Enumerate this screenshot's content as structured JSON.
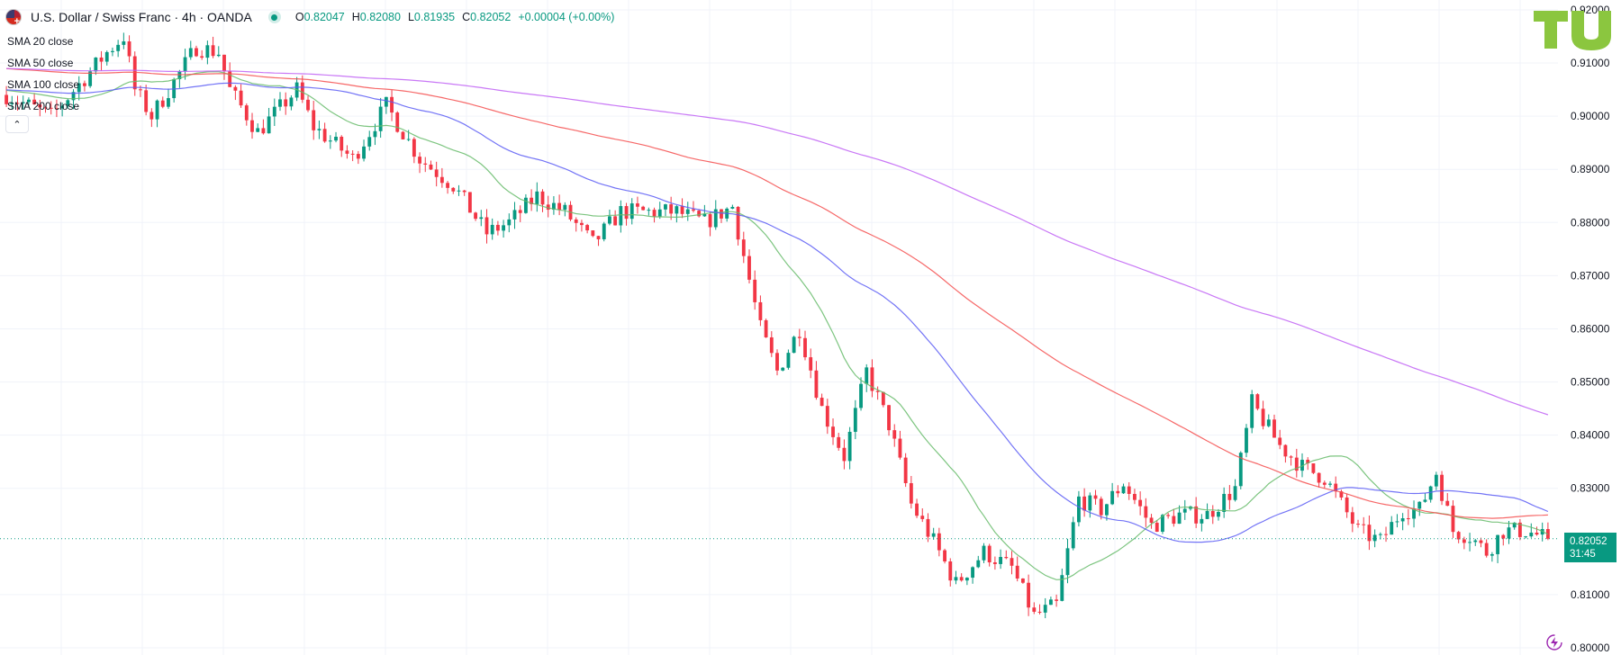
{
  "header": {
    "title": "U.S. Dollar / Swiss Franc · 4h · OANDA",
    "ohlc": {
      "o_label": "O",
      "o_value": "0.82047",
      "h_label": "H",
      "h_value": "0.82080",
      "l_label": "L",
      "l_value": "0.81935",
      "c_label": "C",
      "c_value": "0.82052",
      "change": "+0.00004 (+0.00%)"
    }
  },
  "legend": [
    {
      "label": "SMA 20 close"
    },
    {
      "label": "SMA 50 close"
    },
    {
      "label": "SMA 100 close"
    },
    {
      "label": "SMA 200 close"
    }
  ],
  "icons": {
    "collapse": "chevron-up-icon",
    "logo": "tu-logo",
    "bolt": "lightning-icon",
    "flag": "us-swiss-flag-icon"
  },
  "price_tag": {
    "price": "0.82052",
    "countdown": "31:45"
  },
  "colors": {
    "up": "#089981",
    "down": "#f23645",
    "sma20": "#66bb6a",
    "sma50": "#5b5cf5",
    "sma100": "#f44d4d",
    "sma200": "#c060f5",
    "grid": "#f0f3fa",
    "axis_text": "#131722",
    "logo": "#8bc63f"
  },
  "chart_data": {
    "type": "candlestick",
    "symbol": "USDCHF",
    "interval": "4h",
    "ylim": [
      0.8,
      0.9205
    ],
    "y_ticks": [
      "0.92000",
      "0.91000",
      "0.90000",
      "0.89000",
      "0.88000",
      "0.87000",
      "0.86000",
      "0.85000",
      "0.84000",
      "0.83000",
      "0.81000",
      "0.80000"
    ],
    "last_price": 0.82052,
    "approx_bar_count": 244,
    "price_path_anchors": [
      [
        0,
        0.904
      ],
      [
        8,
        0.9
      ],
      [
        18,
        0.912
      ],
      [
        21,
        0.915
      ],
      [
        23,
        0.905
      ],
      [
        26,
        0.9
      ],
      [
        34,
        0.913
      ],
      [
        38,
        0.912
      ],
      [
        40,
        0.905
      ],
      [
        45,
        0.897
      ],
      [
        52,
        0.905
      ],
      [
        55,
        0.898
      ],
      [
        62,
        0.892
      ],
      [
        68,
        0.902
      ],
      [
        74,
        0.892
      ],
      [
        80,
        0.887
      ],
      [
        86,
        0.878
      ],
      [
        90,
        0.88
      ],
      [
        95,
        0.885
      ],
      [
        100,
        0.882
      ],
      [
        105,
        0.876
      ],
      [
        110,
        0.882
      ],
      [
        120,
        0.882
      ],
      [
        125,
        0.88
      ],
      [
        130,
        0.883
      ],
      [
        135,
        0.86
      ],
      [
        138,
        0.852
      ],
      [
        142,
        0.86
      ],
      [
        146,
        0.845
      ],
      [
        150,
        0.836
      ],
      [
        154,
        0.852
      ],
      [
        158,
        0.842
      ],
      [
        162,
        0.827
      ],
      [
        166,
        0.82
      ],
      [
        170,
        0.812
      ],
      [
        175,
        0.818
      ],
      [
        180,
        0.815
      ],
      [
        184,
        0.806
      ],
      [
        188,
        0.808
      ],
      [
        192,
        0.828
      ],
      [
        196,
        0.826
      ],
      [
        200,
        0.831
      ],
      [
        205,
        0.823
      ],
      [
        210,
        0.825
      ],
      [
        215,
        0.825
      ],
      [
        220,
        0.83
      ],
      [
        223,
        0.846
      ],
      [
        228,
        0.838
      ],
      [
        232,
        0.834
      ],
      [
        236,
        0.832
      ],
      [
        239,
        0.827
      ],
      [
        242,
        0.822
      ],
      [
        246,
        0.82
      ],
      [
        250,
        0.826
      ],
      [
        253,
        0.826
      ],
      [
        256,
        0.833
      ],
      [
        259,
        0.822
      ],
      [
        262,
        0.821
      ],
      [
        265,
        0.818
      ],
      [
        268,
        0.822
      ],
      [
        272,
        0.822
      ],
      [
        276,
        0.8205
      ]
    ],
    "sma_series": [
      {
        "name": "SMA 20 close",
        "period": 20
      },
      {
        "name": "SMA 50 close",
        "period": 50
      },
      {
        "name": "SMA 100 close",
        "period": 100
      },
      {
        "name": "SMA 200 close",
        "period": 200
      }
    ]
  }
}
